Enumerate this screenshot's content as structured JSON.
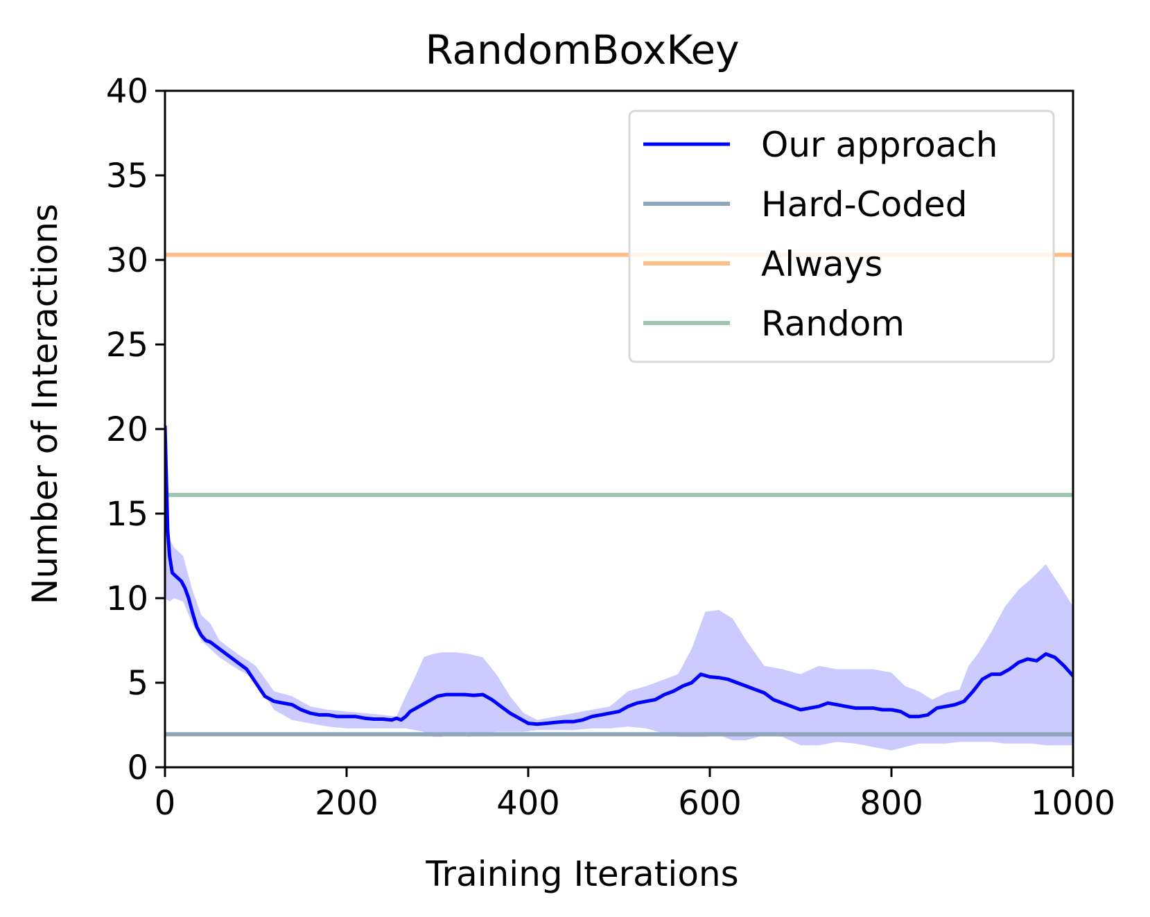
{
  "chart_data": {
    "type": "line",
    "title": "RandomBoxKey",
    "xlabel": "Training Iterations",
    "ylabel": "Number of Interactions",
    "xlim": [
      0,
      1000
    ],
    "ylim": [
      0,
      40
    ],
    "xticks": [
      0,
      200,
      400,
      600,
      800,
      1000
    ],
    "yticks": [
      0,
      5,
      10,
      15,
      20,
      25,
      30,
      35,
      40
    ],
    "grid": false,
    "legend_position": "top-right",
    "series": [
      {
        "name": "Our approach",
        "kind": "line",
        "color": "#0000ff",
        "x": [
          0,
          3,
          5,
          8,
          12,
          18,
          22,
          26,
          30,
          35,
          40,
          45,
          50,
          60,
          70,
          80,
          90,
          100,
          110,
          120,
          130,
          140,
          150,
          160,
          170,
          180,
          190,
          200,
          210,
          220,
          230,
          240,
          250,
          255,
          260,
          265,
          270,
          280,
          290,
          300,
          310,
          320,
          330,
          340,
          350,
          360,
          370,
          380,
          390,
          400,
          410,
          420,
          430,
          440,
          450,
          460,
          470,
          480,
          490,
          500,
          510,
          520,
          530,
          540,
          550,
          560,
          570,
          580,
          590,
          600,
          610,
          620,
          630,
          640,
          650,
          660,
          670,
          680,
          690,
          700,
          710,
          720,
          730,
          740,
          750,
          760,
          770,
          780,
          790,
          800,
          810,
          820,
          830,
          840,
          850,
          860,
          870,
          880,
          890,
          900,
          910,
          920,
          930,
          940,
          950,
          960,
          970,
          980,
          990,
          1000
        ],
        "y": [
          20.2,
          14.0,
          12.5,
          11.5,
          11.3,
          11.0,
          10.6,
          10.0,
          9.2,
          8.3,
          7.8,
          7.5,
          7.4,
          7.0,
          6.6,
          6.2,
          5.8,
          5.0,
          4.2,
          3.9,
          3.8,
          3.7,
          3.4,
          3.2,
          3.1,
          3.1,
          3.0,
          3.0,
          3.0,
          2.9,
          2.85,
          2.85,
          2.8,
          2.9,
          2.8,
          3.0,
          3.3,
          3.6,
          3.9,
          4.2,
          4.3,
          4.3,
          4.3,
          4.25,
          4.3,
          4.0,
          3.6,
          3.2,
          2.9,
          2.6,
          2.55,
          2.6,
          2.65,
          2.7,
          2.7,
          2.8,
          3.0,
          3.1,
          3.2,
          3.3,
          3.6,
          3.8,
          3.9,
          4.0,
          4.3,
          4.5,
          4.8,
          5.0,
          5.5,
          5.35,
          5.3,
          5.2,
          5.0,
          4.8,
          4.6,
          4.4,
          4.0,
          3.8,
          3.6,
          3.4,
          3.5,
          3.6,
          3.8,
          3.7,
          3.6,
          3.5,
          3.5,
          3.5,
          3.4,
          3.4,
          3.3,
          3.0,
          3.0,
          3.1,
          3.5,
          3.6,
          3.7,
          3.9,
          4.5,
          5.2,
          5.5,
          5.5,
          5.8,
          6.2,
          6.4,
          6.3,
          6.7,
          6.5,
          6.0,
          5.4
        ]
      },
      {
        "name": "Our approach (spread)",
        "kind": "band",
        "color": "#8c8cff",
        "x": [
          0,
          5,
          10,
          20,
          30,
          40,
          50,
          60,
          80,
          100,
          120,
          140,
          160,
          180,
          200,
          220,
          240,
          255,
          265,
          275,
          285,
          295,
          305,
          320,
          335,
          350,
          365,
          380,
          395,
          410,
          430,
          450,
          470,
          490,
          510,
          530,
          550,
          565,
          580,
          595,
          610,
          625,
          640,
          660,
          680,
          700,
          720,
          740,
          760,
          780,
          800,
          815,
          830,
          845,
          860,
          875,
          885,
          895,
          910,
          925,
          940,
          955,
          970,
          985,
          1000
        ],
        "upper": [
          20.2,
          13.5,
          13.0,
          12.5,
          10.5,
          9.0,
          8.5,
          7.5,
          6.7,
          6.0,
          4.5,
          4.2,
          3.6,
          3.4,
          3.3,
          3.2,
          3.1,
          3.0,
          4.2,
          5.3,
          6.5,
          6.7,
          6.8,
          6.8,
          6.7,
          6.5,
          5.5,
          4.2,
          3.2,
          2.8,
          3.0,
          3.2,
          3.4,
          3.6,
          4.5,
          4.8,
          5.2,
          5.5,
          7.0,
          9.2,
          9.3,
          8.8,
          7.5,
          6.0,
          5.8,
          5.5,
          6.0,
          5.8,
          5.8,
          5.8,
          5.6,
          4.8,
          4.5,
          4.0,
          4.4,
          4.6,
          6.0,
          6.7,
          8.0,
          9.5,
          10.5,
          11.2,
          12.0,
          10.8,
          9.5
        ],
        "lower": [
          10.0,
          9.8,
          10.0,
          9.8,
          8.5,
          7.5,
          7.0,
          6.5,
          5.8,
          5.2,
          3.4,
          2.8,
          2.6,
          2.4,
          2.3,
          2.3,
          2.3,
          2.3,
          2.3,
          2.2,
          2.1,
          1.8,
          1.8,
          2.0,
          1.8,
          2.0,
          2.1,
          2.1,
          2.1,
          2.2,
          2.2,
          2.2,
          2.3,
          2.3,
          2.4,
          2.3,
          2.0,
          1.8,
          1.8,
          1.8,
          1.9,
          1.6,
          1.6,
          1.9,
          1.8,
          1.3,
          1.3,
          1.5,
          1.4,
          1.2,
          1.0,
          1.2,
          1.4,
          1.4,
          1.4,
          1.5,
          1.5,
          1.5,
          1.5,
          1.4,
          1.4,
          1.4,
          1.3,
          1.3,
          1.3
        ]
      },
      {
        "name": "Hard-Coded",
        "kind": "hline",
        "color": "#8fa6bc",
        "value": 1.95
      },
      {
        "name": "Always",
        "kind": "hline",
        "color": "#ffbe86",
        "value": 30.3
      },
      {
        "name": "Random",
        "kind": "hline",
        "color": "#9ec5ae",
        "value": 16.1
      }
    ],
    "legend": [
      "Our approach",
      "Hard-Coded",
      "Always",
      "Random"
    ]
  }
}
